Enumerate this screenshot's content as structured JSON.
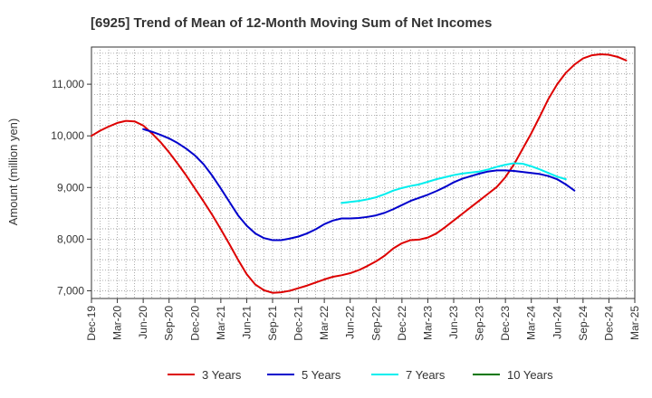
{
  "chart_data": {
    "type": "line",
    "title": "[6925]  Trend of Mean of 12-Month Moving Sum of Net Incomes",
    "ylabel": "Amount (million yen)",
    "xlabel": "",
    "x_ticks": [
      "Dec-19",
      "Mar-20",
      "Jun-20",
      "Sep-20",
      "Dec-20",
      "Mar-21",
      "Jun-21",
      "Sep-21",
      "Dec-21",
      "Mar-22",
      "Jun-22",
      "Sep-22",
      "Dec-22",
      "Mar-23",
      "Jun-23",
      "Sep-23",
      "Dec-23",
      "Mar-24",
      "Jun-24",
      "Sep-24",
      "Dec-24",
      "Mar-25"
    ],
    "y_ticks": [
      "7,000",
      "8,000",
      "9,000",
      "10,000",
      "11,000"
    ],
    "y_tick_values": [
      7000,
      8000,
      9000,
      10000,
      11000
    ],
    "ylim": [
      6850,
      11720
    ],
    "grid": true,
    "legend_position": "bottom",
    "series": [
      {
        "name": "3 Years",
        "color": "#dd0000",
        "points": [
          [
            0,
            10000
          ],
          [
            1,
            10100
          ],
          [
            2,
            10180
          ],
          [
            3,
            10250
          ],
          [
            4,
            10290
          ],
          [
            5,
            10280
          ],
          [
            6,
            10200
          ],
          [
            7,
            10050
          ],
          [
            8,
            9880
          ],
          [
            9,
            9680
          ],
          [
            10,
            9460
          ],
          [
            11,
            9230
          ],
          [
            12,
            8980
          ],
          [
            13,
            8730
          ],
          [
            14,
            8470
          ],
          [
            15,
            8190
          ],
          [
            16,
            7900
          ],
          [
            17,
            7600
          ],
          [
            18,
            7320
          ],
          [
            19,
            7120
          ],
          [
            20,
            7010
          ],
          [
            21,
            6960
          ],
          [
            22,
            6970
          ],
          [
            23,
            7000
          ],
          [
            24,
            7050
          ],
          [
            25,
            7100
          ],
          [
            26,
            7160
          ],
          [
            27,
            7220
          ],
          [
            28,
            7270
          ],
          [
            29,
            7300
          ],
          [
            30,
            7340
          ],
          [
            31,
            7400
          ],
          [
            32,
            7480
          ],
          [
            33,
            7570
          ],
          [
            34,
            7680
          ],
          [
            35,
            7820
          ],
          [
            36,
            7920
          ],
          [
            37,
            7980
          ],
          [
            38,
            7990
          ],
          [
            39,
            8030
          ],
          [
            40,
            8110
          ],
          [
            41,
            8230
          ],
          [
            42,
            8360
          ],
          [
            43,
            8490
          ],
          [
            44,
            8620
          ],
          [
            45,
            8750
          ],
          [
            46,
            8880
          ],
          [
            47,
            9010
          ],
          [
            48,
            9200
          ],
          [
            49,
            9450
          ],
          [
            50,
            9750
          ],
          [
            51,
            10050
          ],
          [
            52,
            10380
          ],
          [
            53,
            10720
          ],
          [
            54,
            11000
          ],
          [
            55,
            11220
          ],
          [
            56,
            11380
          ],
          [
            57,
            11500
          ],
          [
            58,
            11560
          ],
          [
            59,
            11580
          ],
          [
            60,
            11570
          ],
          [
            61,
            11530
          ],
          [
            62,
            11460
          ]
        ]
      },
      {
        "name": "5 Years",
        "color": "#0000cc",
        "points": [
          [
            6,
            10130
          ],
          [
            7,
            10080
          ],
          [
            8,
            10020
          ],
          [
            9,
            9950
          ],
          [
            10,
            9860
          ],
          [
            11,
            9750
          ],
          [
            12,
            9620
          ],
          [
            13,
            9450
          ],
          [
            14,
            9230
          ],
          [
            15,
            8980
          ],
          [
            16,
            8720
          ],
          [
            17,
            8460
          ],
          [
            18,
            8260
          ],
          [
            19,
            8110
          ],
          [
            20,
            8020
          ],
          [
            21,
            7980
          ],
          [
            22,
            7980
          ],
          [
            23,
            8010
          ],
          [
            24,
            8050
          ],
          [
            25,
            8110
          ],
          [
            26,
            8190
          ],
          [
            27,
            8290
          ],
          [
            28,
            8360
          ],
          [
            29,
            8400
          ],
          [
            30,
            8400
          ],
          [
            31,
            8410
          ],
          [
            32,
            8430
          ],
          [
            33,
            8460
          ],
          [
            34,
            8510
          ],
          [
            35,
            8580
          ],
          [
            36,
            8660
          ],
          [
            37,
            8740
          ],
          [
            38,
            8800
          ],
          [
            39,
            8860
          ],
          [
            40,
            8930
          ],
          [
            41,
            9010
          ],
          [
            42,
            9100
          ],
          [
            43,
            9170
          ],
          [
            44,
            9220
          ],
          [
            45,
            9270
          ],
          [
            46,
            9310
          ],
          [
            47,
            9330
          ],
          [
            48,
            9330
          ],
          [
            49,
            9320
          ],
          [
            50,
            9300
          ],
          [
            51,
            9280
          ],
          [
            52,
            9260
          ],
          [
            53,
            9220
          ],
          [
            54,
            9160
          ],
          [
            55,
            9060
          ],
          [
            56,
            8940
          ]
        ]
      },
      {
        "name": "7 Years",
        "color": "#00eeee",
        "points": [
          [
            29,
            8700
          ],
          [
            30,
            8720
          ],
          [
            31,
            8740
          ],
          [
            32,
            8770
          ],
          [
            33,
            8810
          ],
          [
            34,
            8870
          ],
          [
            35,
            8940
          ],
          [
            36,
            8990
          ],
          [
            37,
            9030
          ],
          [
            38,
            9060
          ],
          [
            39,
            9110
          ],
          [
            40,
            9160
          ],
          [
            41,
            9200
          ],
          [
            42,
            9240
          ],
          [
            43,
            9270
          ],
          [
            44,
            9290
          ],
          [
            45,
            9310
          ],
          [
            46,
            9350
          ],
          [
            47,
            9400
          ],
          [
            48,
            9440
          ],
          [
            49,
            9470
          ],
          [
            50,
            9460
          ],
          [
            51,
            9410
          ],
          [
            52,
            9350
          ],
          [
            53,
            9280
          ],
          [
            54,
            9210
          ],
          [
            55,
            9160
          ]
        ]
      },
      {
        "name": "10 Years",
        "color": "#007700",
        "points": []
      }
    ]
  }
}
